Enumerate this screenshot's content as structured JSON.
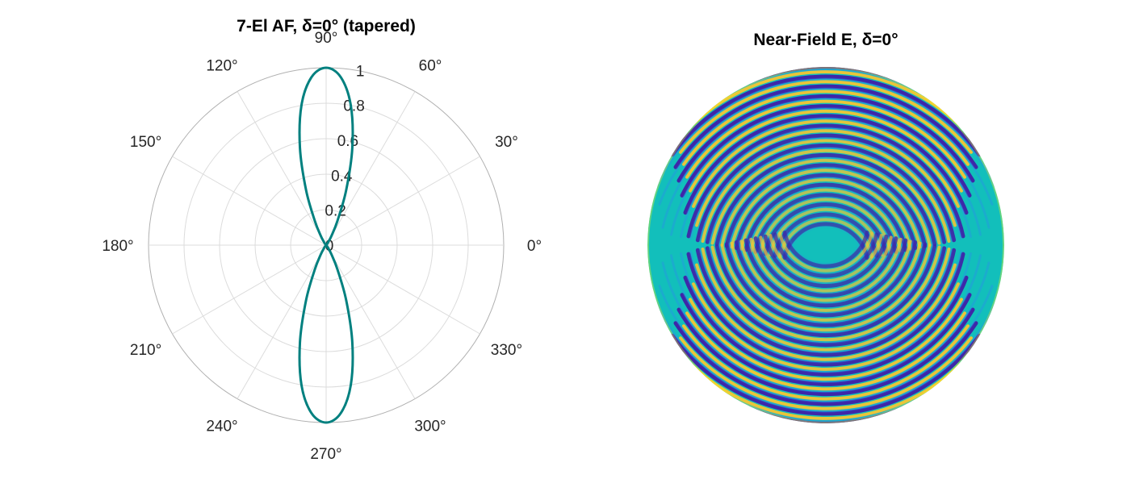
{
  "chart_data": [
    {
      "type": "polar-line",
      "title": "7-El AF, δ=0° (tapered)",
      "r_ticks": [
        "0",
        "0.2",
        "0.4",
        "0.6",
        "0.8",
        "1"
      ],
      "r_tick_values": [
        0,
        0.2,
        0.4,
        0.6,
        0.8,
        1
      ],
      "rlim": [
        0,
        1
      ],
      "theta_ticks": [
        "0°",
        "30°",
        "60°",
        "90°",
        "120°",
        "150°",
        "180°",
        "210°",
        "240°",
        "270°",
        "300°",
        "330°"
      ],
      "theta_tick_values": [
        0,
        30,
        60,
        90,
        120,
        150,
        180,
        210,
        240,
        270,
        300,
        330
      ],
      "grid": true,
      "series": [
        {
          "color": "#00807f",
          "theta_deg": [
            0,
            10,
            20,
            30,
            40,
            50,
            55,
            60,
            65,
            70,
            75,
            80,
            85,
            90,
            95,
            100,
            105,
            110,
            115,
            120,
            125,
            130,
            140,
            150,
            160,
            170,
            180,
            190,
            200,
            210,
            220,
            230,
            235,
            240,
            245,
            250,
            255,
            260,
            265,
            270,
            275,
            280,
            285,
            290,
            295,
            300,
            305,
            310,
            320,
            330,
            340,
            350,
            360
          ],
          "r": [
            0,
            0,
            0,
            0,
            0,
            0.01,
            0.02,
            0.06,
            0.15,
            0.33,
            0.57,
            0.8,
            0.95,
            1.0,
            0.95,
            0.8,
            0.57,
            0.33,
            0.15,
            0.06,
            0.02,
            0.01,
            0,
            0,
            0,
            0,
            0,
            0,
            0,
            0,
            0,
            0.01,
            0.02,
            0.06,
            0.15,
            0.33,
            0.57,
            0.8,
            0.95,
            1.0,
            0.95,
            0.8,
            0.57,
            0.33,
            0.15,
            0.06,
            0.02,
            0.01,
            0,
            0,
            0,
            0,
            0
          ]
        }
      ]
    },
    {
      "type": "heatmap",
      "title": "Near-Field E, δ=0°",
      "shape": "disk",
      "colormap": [
        "#3e26a8",
        "#2e8af0",
        "#11bebb",
        "#f7c531",
        "#f9fb15"
      ],
      "background_color": "#12bfbb",
      "fringe_rings": 18
    }
  ]
}
